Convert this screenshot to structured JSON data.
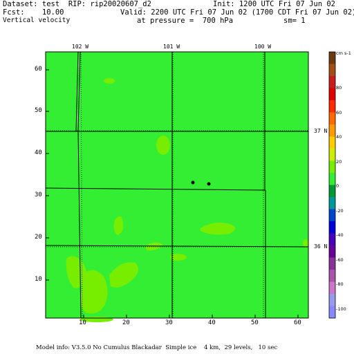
{
  "header": {
    "dataset_line": "Dataset: test  RIP: rip20020607_d2",
    "fcst_line": "Fcst:    10.00",
    "field_line": "Vertical velocity",
    "init_line": "Init: 1200 UTC Fri 07 Jun 02",
    "valid_line": "Valid: 2200 UTC Fri 07 Jun 02 (1700 CDT Fri 07 Jun 02)",
    "pressure_line": "at pressure =  700 hPa",
    "smooth_line": "sm= 1"
  },
  "map": {
    "x_ticks": [
      "10",
      "20",
      "30",
      "40",
      "50",
      "60"
    ],
    "y_ticks": [
      "10",
      "20",
      "30",
      "40",
      "50",
      "60"
    ],
    "lon_labels": [
      "102 W",
      "101 W",
      "100 W"
    ],
    "lat_labels": [
      "37 N",
      "36 N"
    ],
    "background_color": "#33ee33",
    "feature_color": "#77ee00"
  },
  "colorbar": {
    "units": "cm s-1",
    "labels": [
      "80",
      "60",
      "40",
      "20",
      "0",
      "-20",
      "-40",
      "-60",
      "-80",
      "-100"
    ],
    "colors": [
      "#6b3a10",
      "#a34d18",
      "#c81e1e",
      "#e00000",
      "#ff2a00",
      "#ff6a00",
      "#ff9900",
      "#ffcc00",
      "#ccee00",
      "#77ee00",
      "#33ee33",
      "#009933",
      "#009999",
      "#0044cc",
      "#0000dd",
      "#4400bb",
      "#660099",
      "#883399",
      "#aa55aa",
      "#cc77cc",
      "#9999ee",
      "#8888ff"
    ]
  },
  "footer": "Model info: V3.5.0 No Cumulus Blackadar  Simple ice    4 km,  29 levels,   10 sec"
}
